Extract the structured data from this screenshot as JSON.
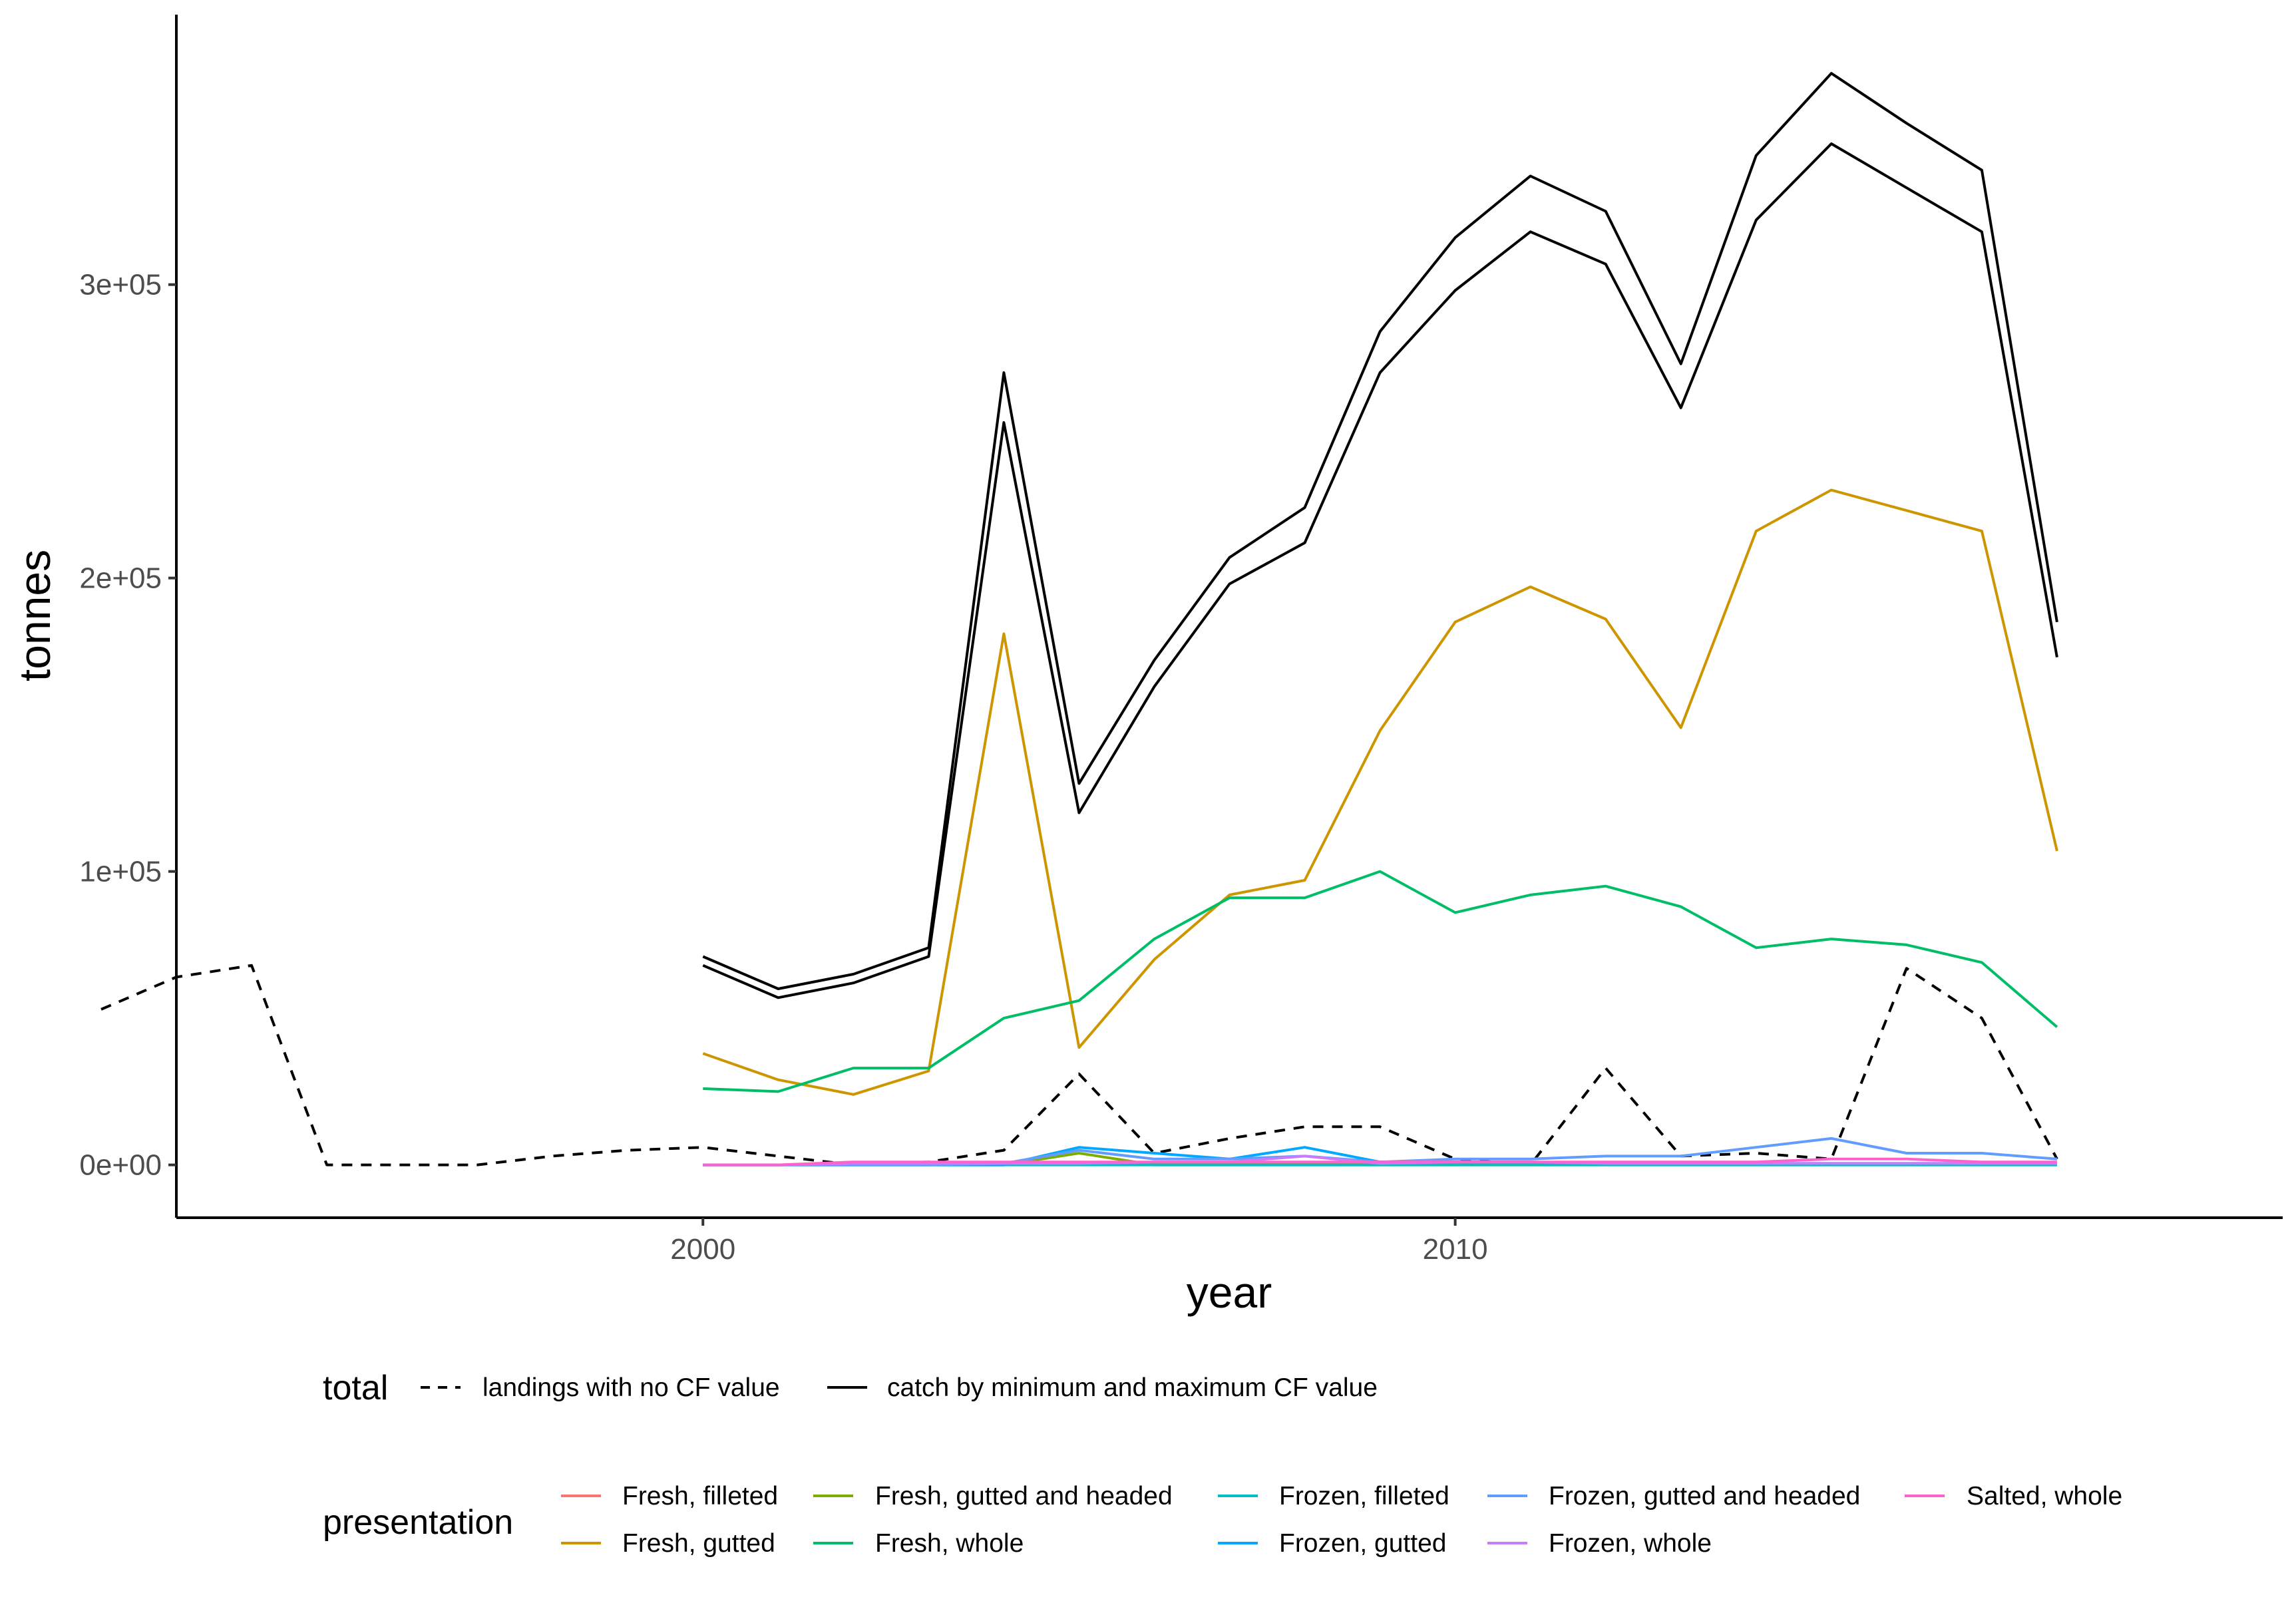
{
  "chart_data": {
    "type": "line",
    "xlabel": "year",
    "ylabel": "tonnes",
    "xlim": [
      1993.0,
      2021.0
    ],
    "ylim": [
      -18000,
      392000
    ],
    "x_ticks": [
      2000,
      2010
    ],
    "x_tick_labels": [
      "2000",
      "2010"
    ],
    "y_ticks": [
      0,
      100000,
      200000,
      300000
    ],
    "y_tick_labels": [
      "0e+00",
      "1e+05",
      "2e+05",
      "3e+05"
    ],
    "grid": false,
    "legend_total": {
      "title": "total",
      "entries": [
        {
          "label": "landings with no CF value",
          "style": "dashed",
          "color": "#000000"
        },
        {
          "label": "catch by minimum and maximum CF value",
          "style": "solid",
          "color": "#000000"
        }
      ]
    },
    "legend_presentation": {
      "title": "presentation",
      "entries": [
        {
          "label": "Fresh, filleted",
          "color": "#F8766D"
        },
        {
          "label": "Fresh, gutted",
          "color": "#CD9600"
        },
        {
          "label": "Fresh, gutted and headed",
          "color": "#7CAE00"
        },
        {
          "label": "Fresh, whole",
          "color": "#00BE67"
        },
        {
          "label": "Frozen, filleted",
          "color": "#00BFC4"
        },
        {
          "label": "Frozen, gutted",
          "color": "#00A9FF"
        },
        {
          "label": "Frozen, gutted and headed",
          "color": "#619CFF"
        },
        {
          "label": "Frozen, whole",
          "color": "#C77CFF"
        },
        {
          "label": "Salted, whole",
          "color": "#FF61CC"
        }
      ]
    },
    "series": [
      {
        "name": "landings with no CF value",
        "group": "total",
        "color": "#000000",
        "dash": true,
        "x": [
          1992,
          1993,
          1994,
          1995,
          1996,
          1997,
          1998,
          1999,
          2000,
          2001,
          2002,
          2003,
          2004,
          2005,
          2006,
          2007,
          2008,
          2009,
          2010,
          2011,
          2012,
          2013,
          2014,
          2015,
          2016,
          2017,
          2018
        ],
        "y": [
          53000,
          64000,
          68000,
          0,
          0,
          0,
          3000,
          5000,
          6000,
          3000,
          0,
          1000,
          5000,
          31000,
          4000,
          9000,
          13000,
          13000,
          2000,
          0,
          33000,
          3000,
          4000,
          2000,
          67000,
          50000,
          2000
        ]
      },
      {
        "name": "catch by maximum CF value",
        "group": "total",
        "color": "#000000",
        "dash": false,
        "x": [
          2000,
          2001,
          2002,
          2003,
          2004,
          2005,
          2006,
          2007,
          2008,
          2009,
          2010,
          2011,
          2012,
          2013,
          2014,
          2015,
          2016,
          2017,
          2018
        ],
        "y": [
          71000,
          60000,
          65000,
          74000,
          270000,
          130000,
          172000,
          207000,
          224000,
          284000,
          316000,
          337000,
          325000,
          273000,
          344000,
          372000,
          355000,
          339000,
          185000
        ]
      },
      {
        "name": "catch by minimum CF value",
        "group": "total",
        "color": "#000000",
        "dash": false,
        "x": [
          2000,
          2001,
          2002,
          2003,
          2004,
          2005,
          2006,
          2007,
          2008,
          2009,
          2010,
          2011,
          2012,
          2013,
          2014,
          2015,
          2016,
          2017,
          2018
        ],
        "y": [
          68000,
          57000,
          62000,
          71000,
          253000,
          120000,
          163000,
          198000,
          212000,
          270000,
          298000,
          318000,
          307000,
          258000,
          322000,
          348000,
          333000,
          318000,
          173000
        ]
      },
      {
        "name": "Fresh, gutted",
        "group": "presentation",
        "color": "#CD9600",
        "dash": false,
        "x": [
          2000,
          2001,
          2002,
          2003,
          2004,
          2005,
          2006,
          2007,
          2008,
          2009,
          2010,
          2011,
          2012,
          2013,
          2014,
          2015,
          2016,
          2017,
          2018
        ],
        "y": [
          38000,
          29000,
          24000,
          32000,
          181000,
          40000,
          70000,
          92000,
          97000,
          148000,
          185000,
          197000,
          186000,
          149000,
          216000,
          230000,
          223000,
          216000,
          107000
        ]
      },
      {
        "name": "Fresh, whole",
        "group": "presentation",
        "color": "#00BE67",
        "dash": false,
        "x": [
          2000,
          2001,
          2002,
          2003,
          2004,
          2005,
          2006,
          2007,
          2008,
          2009,
          2010,
          2011,
          2012,
          2013,
          2014,
          2015,
          2016,
          2017,
          2018
        ],
        "y": [
          26000,
          25000,
          33000,
          33000,
          50000,
          56000,
          77000,
          91000,
          91000,
          100000,
          86000,
          92000,
          95000,
          88000,
          74000,
          77000,
          75000,
          69000,
          47000
        ]
      },
      {
        "name": "Fresh, filleted",
        "group": "presentation",
        "color": "#F8766D",
        "dash": false,
        "x": [
          2000,
          2001,
          2002,
          2003,
          2004,
          2005,
          2006,
          2007,
          2008,
          2009,
          2010,
          2011,
          2012,
          2013,
          2014,
          2015,
          2016,
          2017,
          2018
        ],
        "y": [
          0,
          0,
          500,
          500,
          500,
          500,
          500,
          500,
          500,
          500,
          500,
          500,
          500,
          500,
          500,
          500,
          500,
          500,
          500
        ]
      },
      {
        "name": "Fresh, gutted and headed",
        "group": "presentation",
        "color": "#7CAE00",
        "dash": false,
        "x": [
          2000,
          2001,
          2002,
          2003,
          2004,
          2005,
          2006,
          2007,
          2008,
          2009,
          2010,
          2011,
          2012,
          2013,
          2014,
          2015,
          2016,
          2017,
          2018
        ],
        "y": [
          0,
          0,
          0,
          0,
          0,
          4000,
          0,
          0,
          0,
          0,
          0,
          0,
          0,
          0,
          0,
          0,
          0,
          0,
          0
        ]
      },
      {
        "name": "Frozen, filleted",
        "group": "presentation",
        "color": "#00BFC4",
        "dash": false,
        "x": [
          2000,
          2001,
          2002,
          2003,
          2004,
          2005,
          2006,
          2007,
          2008,
          2009,
          2010,
          2011,
          2012,
          2013,
          2014,
          2015,
          2016,
          2017,
          2018
        ],
        "y": [
          0,
          0,
          0,
          0,
          0,
          0,
          0,
          0,
          0,
          0,
          0,
          0,
          0,
          0,
          0,
          0,
          0,
          0,
          0
        ]
      },
      {
        "name": "Frozen, gutted",
        "group": "presentation",
        "color": "#00A9FF",
        "dash": false,
        "x": [
          2000,
          2001,
          2002,
          2003,
          2004,
          2005,
          2006,
          2007,
          2008,
          2009,
          2010,
          2011,
          2012,
          2013,
          2014,
          2015,
          2016,
          2017,
          2018
        ],
        "y": [
          0,
          0,
          0,
          0,
          0,
          6000,
          4000,
          2000,
          6000,
          1000,
          1000,
          1000,
          500,
          500,
          500,
          500,
          500,
          500,
          500
        ]
      },
      {
        "name": "Frozen, gutted and headed",
        "group": "presentation",
        "color": "#619CFF",
        "dash": false,
        "x": [
          2000,
          2001,
          2002,
          2003,
          2004,
          2005,
          2006,
          2007,
          2008,
          2009,
          2010,
          2011,
          2012,
          2013,
          2014,
          2015,
          2016,
          2017,
          2018
        ],
        "y": [
          0,
          0,
          0,
          0,
          500,
          5000,
          2000,
          2000,
          3000,
          1000,
          2000,
          2000,
          3000,
          3000,
          6000,
          9000,
          4000,
          4000,
          2000
        ]
      },
      {
        "name": "Frozen, whole",
        "group": "presentation",
        "color": "#C77CFF",
        "dash": false,
        "x": [
          2000,
          2001,
          2002,
          2003,
          2004,
          2005,
          2006,
          2007,
          2008,
          2009,
          2010,
          2011,
          2012,
          2013,
          2014,
          2015,
          2016,
          2017,
          2018
        ],
        "y": [
          0,
          0,
          500,
          500,
          500,
          500,
          1000,
          1000,
          3000,
          500,
          1000,
          1000,
          500,
          500,
          500,
          500,
          500,
          500,
          500
        ]
      },
      {
        "name": "Salted, whole",
        "group": "presentation",
        "color": "#FF61CC",
        "dash": false,
        "x": [
          2000,
          2001,
          2002,
          2003,
          2004,
          2005,
          2006,
          2007,
          2008,
          2009,
          2010,
          2011,
          2012,
          2013,
          2014,
          2015,
          2016,
          2017,
          2018
        ],
        "y": [
          0,
          0,
          1000,
          1000,
          1000,
          1000,
          1000,
          1000,
          1000,
          1000,
          1000,
          1000,
          1000,
          1000,
          1000,
          2000,
          2000,
          1000,
          1000
        ]
      }
    ]
  }
}
